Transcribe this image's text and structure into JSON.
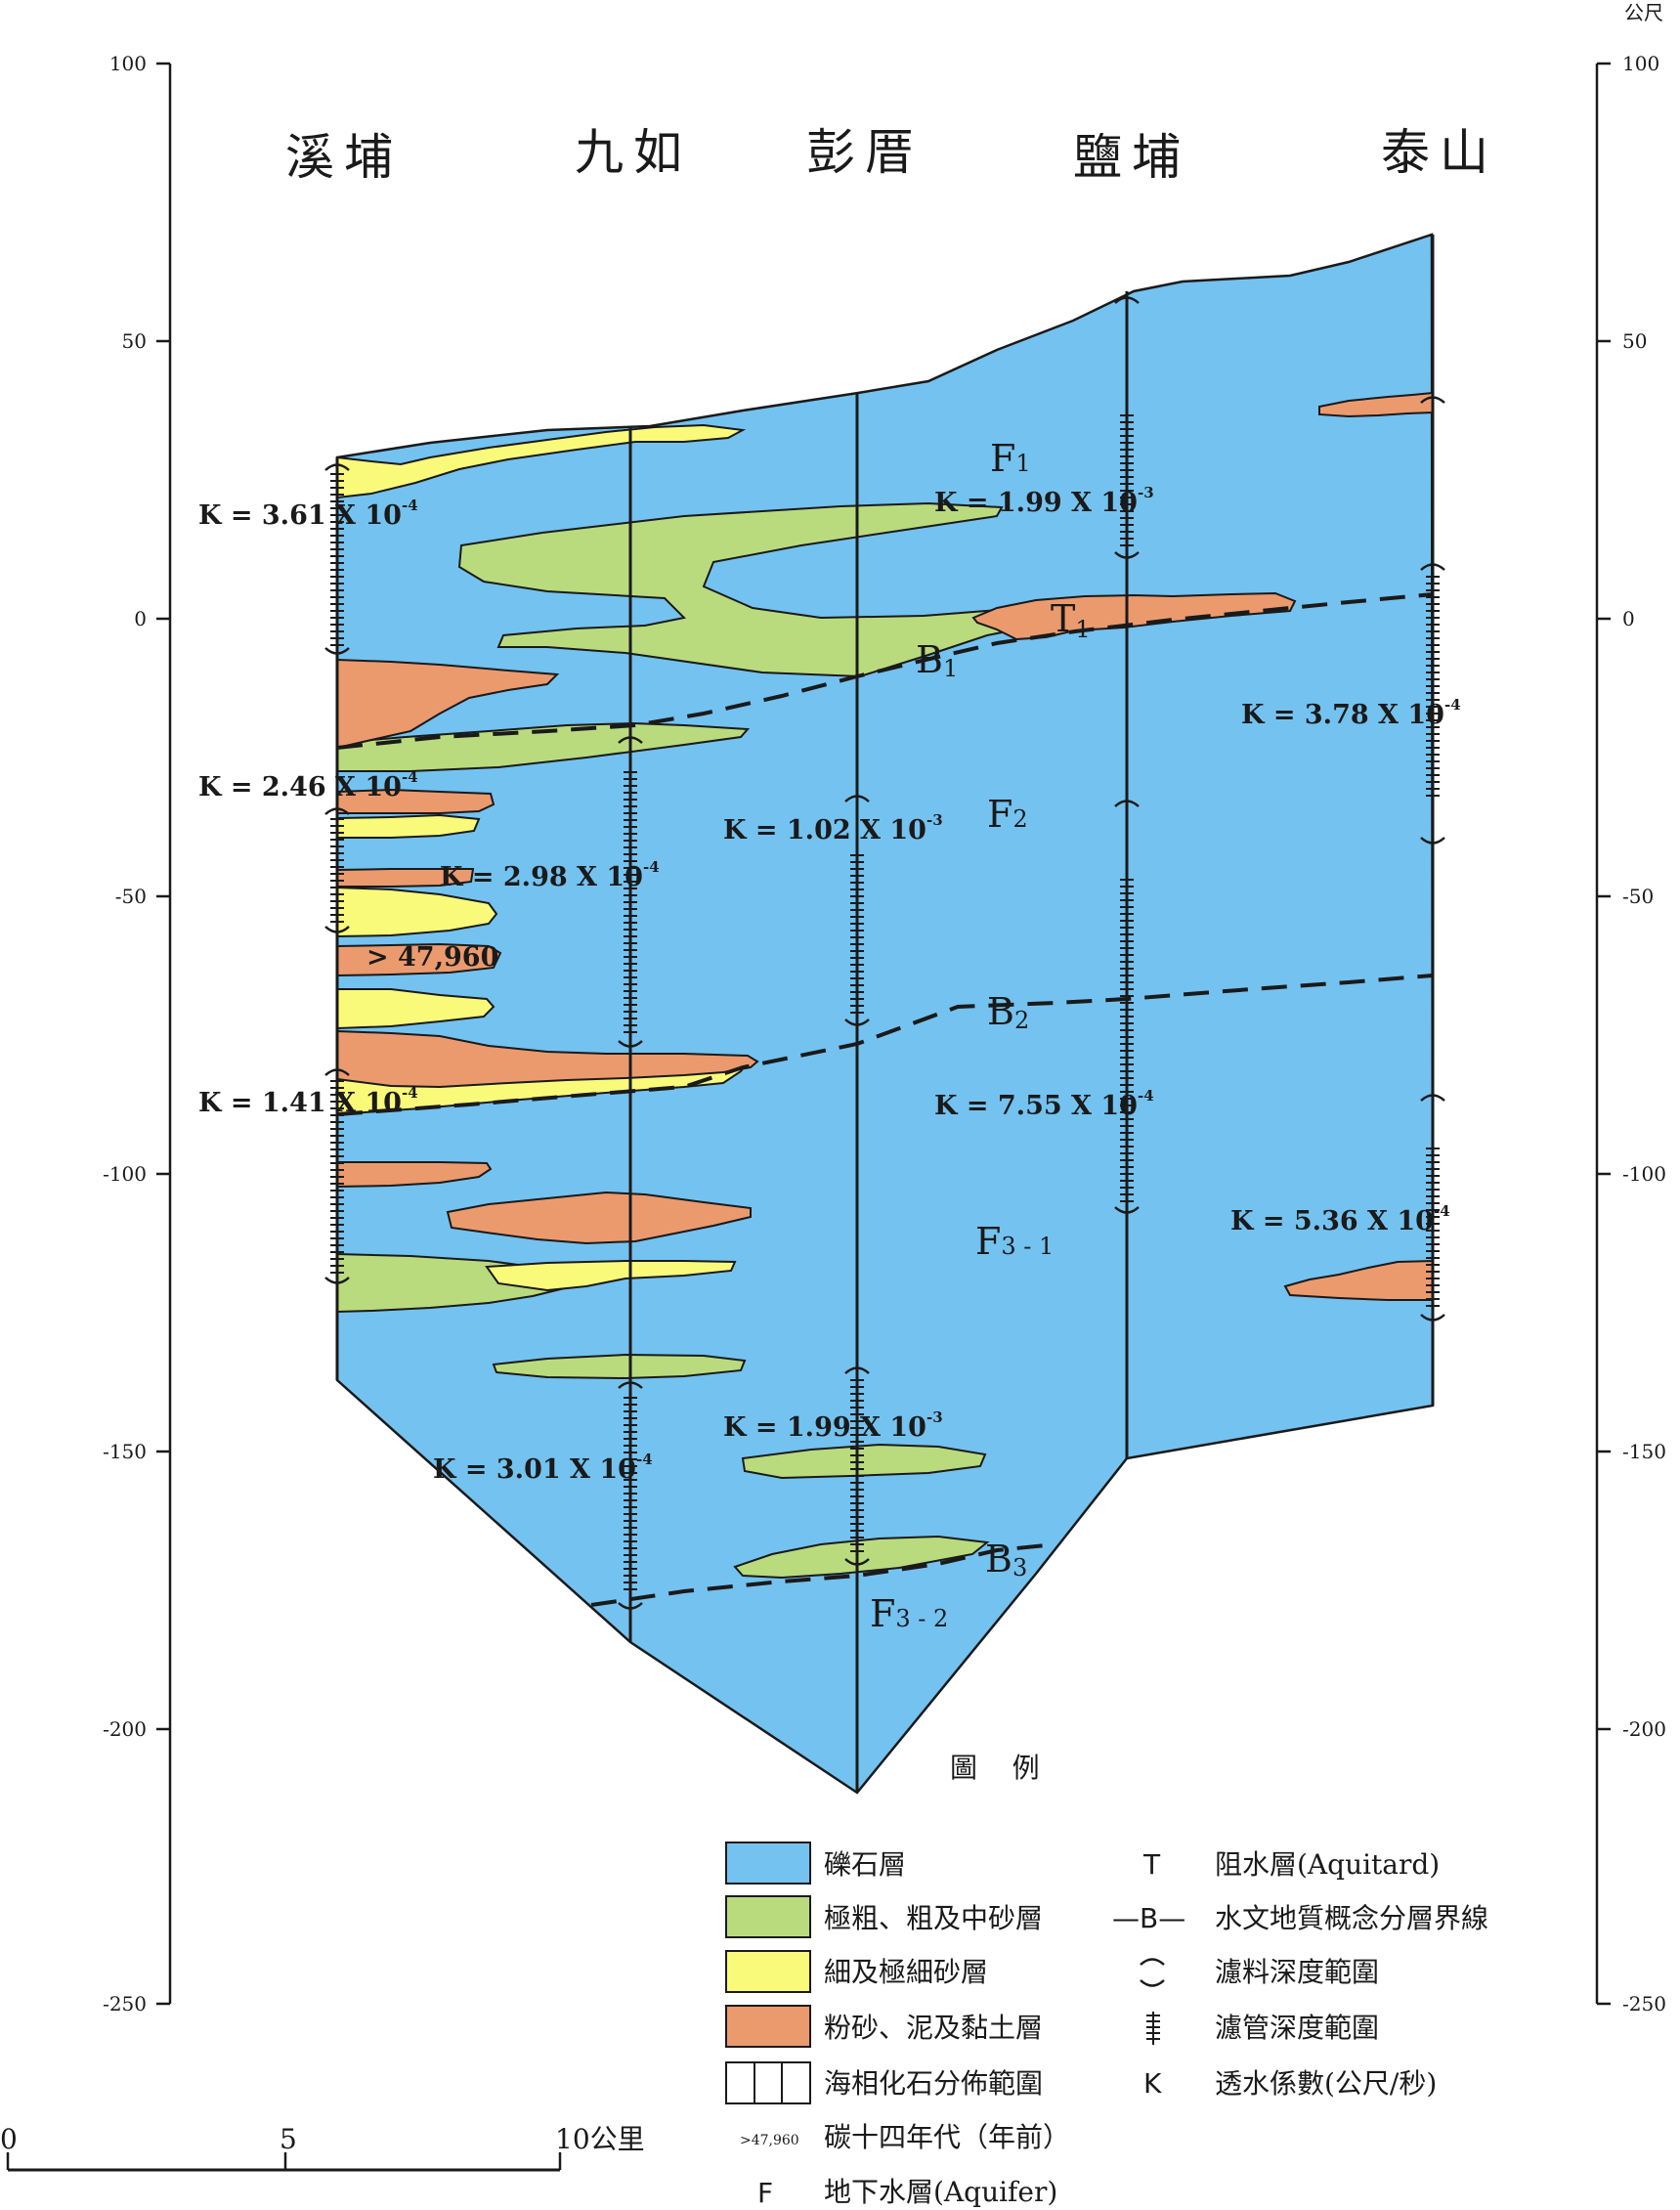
{
  "units": "公尺",
  "axis_ticks": [
    "100",
    "50",
    "0",
    "-50",
    "-100",
    "-150",
    "-200",
    "-250"
  ],
  "wells": [
    "溪埔",
    "九如",
    "彭厝",
    "鹽埔",
    "泰山"
  ],
  "k_values": {
    "xipu_1": "K = 3.61 X 10",
    "xipu_2": "K = 2.46 X 10",
    "xipu_3": "K = 1.41 X 10",
    "jiuru_1": "K = 2.98 X 10",
    "jiuru_2": "K = 3.01 X 10",
    "pengcuo_1": "K = 1.02 X 10",
    "pengcuo_2": "K = 1.99 X 10",
    "yanpu_1": "K = 1.99 X 10",
    "yanpu_2": "K = 7.55 X 10",
    "taishan_1": "K = 3.78 X 10",
    "taishan_2": "K = 5.36 X 10",
    "exp4": "-4",
    "exp3": "-3"
  },
  "radiocarbon": "> 47,960",
  "layers": {
    "F": "F",
    "F1_sub": "1",
    "F2_sub": "2",
    "F31_sub": "3 - 1",
    "F32_sub": "3 - 2",
    "T": "T",
    "T1_sub": "1",
    "B": "B",
    "B1_sub": "1",
    "B2_sub": "2",
    "B3_sub": "3"
  },
  "legend": {
    "title": "圖    例",
    "gravel": "礫石層",
    "coarse_sand": "極粗、粗及中砂層",
    "fine_sand": "細及極細砂層",
    "silt_clay": "粉砂、泥及黏土層",
    "marine_fossil": "海相化石分佈範圍",
    "c14_sample": ">47,960",
    "c14": "碳十四年代（年前）",
    "aquifer_symbol": "F",
    "aquifer": "地下水層(Aquifer)",
    "aquitard_symbol": "T",
    "aquitard": "阻水層(Aquitard)",
    "boundary_symbol": "—B—",
    "boundary": "水文地質概念分層界線",
    "filter_pack": "濾料深度範圍",
    "screen": "濾管深度範圍",
    "k_symbol": "K",
    "k_desc": "透水係數(公尺/秒)"
  },
  "scale_bar": {
    "zero": "0",
    "five": "5",
    "ten": "10公里"
  },
  "colors": {
    "gravel": "#74C2EF",
    "coarse_sand": "#B9DB7E",
    "fine_sand": "#FAFA7A",
    "silt_clay": "#EB9A6E",
    "line": "#1a1a1a"
  }
}
